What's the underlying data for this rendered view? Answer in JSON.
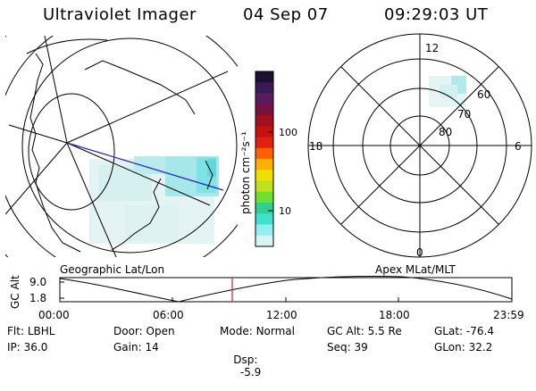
{
  "header": {
    "instrument": "Ultraviolet Imager",
    "date": "04 Sep 07",
    "time": "09:29:03 UT"
  },
  "colorbar": {
    "unit_label": "photon cm⁻²s⁻¹",
    "ticks": [
      "100",
      "10"
    ],
    "colors": [
      "#1a1030",
      "#3a1a55",
      "#5a1a60",
      "#7a1040",
      "#a01020",
      "#c81010",
      "#e02010",
      "#ff6000",
      "#ffb000",
      "#f0e000",
      "#c0e020",
      "#70e030",
      "#30d090",
      "#40e0d0",
      "#90f0f0",
      "#d8f4f4"
    ]
  },
  "polar_plot": {
    "rings": [
      "60",
      "70",
      "80"
    ],
    "mlt_labels": {
      "top": "12",
      "right": "6",
      "bottom": "0",
      "left": "18"
    }
  },
  "timeline": {
    "left_title": "Geographic Lat/Lon",
    "right_title": "Apex MLat/MLT",
    "ylabel": "GC Alt",
    "y_ticks": [
      "9.0",
      "1.8"
    ],
    "x_ticks": [
      "00:00",
      "06:00",
      "12:00",
      "18:00",
      "23:59"
    ],
    "marker_color": "#d02020"
  },
  "status": [
    [
      {
        "k": "Flt:",
        "v": "LBHL"
      },
      {
        "k": "Door:",
        "v": "Open"
      },
      {
        "k": "Mode:",
        "v": "Normal"
      },
      {
        "k": "GC Alt:",
        "v": "5.5 Re"
      },
      {
        "k": "GLat:",
        "v": "-76.4"
      }
    ],
    [
      {
        "k": "IP:",
        "v": "36.0"
      },
      {
        "k": "Gain:",
        "v": "14"
      },
      {
        "k": "Dsp:",
        "v": "  -5.9"
      },
      {
        "k": "Seq:",
        "v": "39"
      },
      {
        "k": "GLon:",
        "v": "32.2"
      }
    ]
  ]
}
